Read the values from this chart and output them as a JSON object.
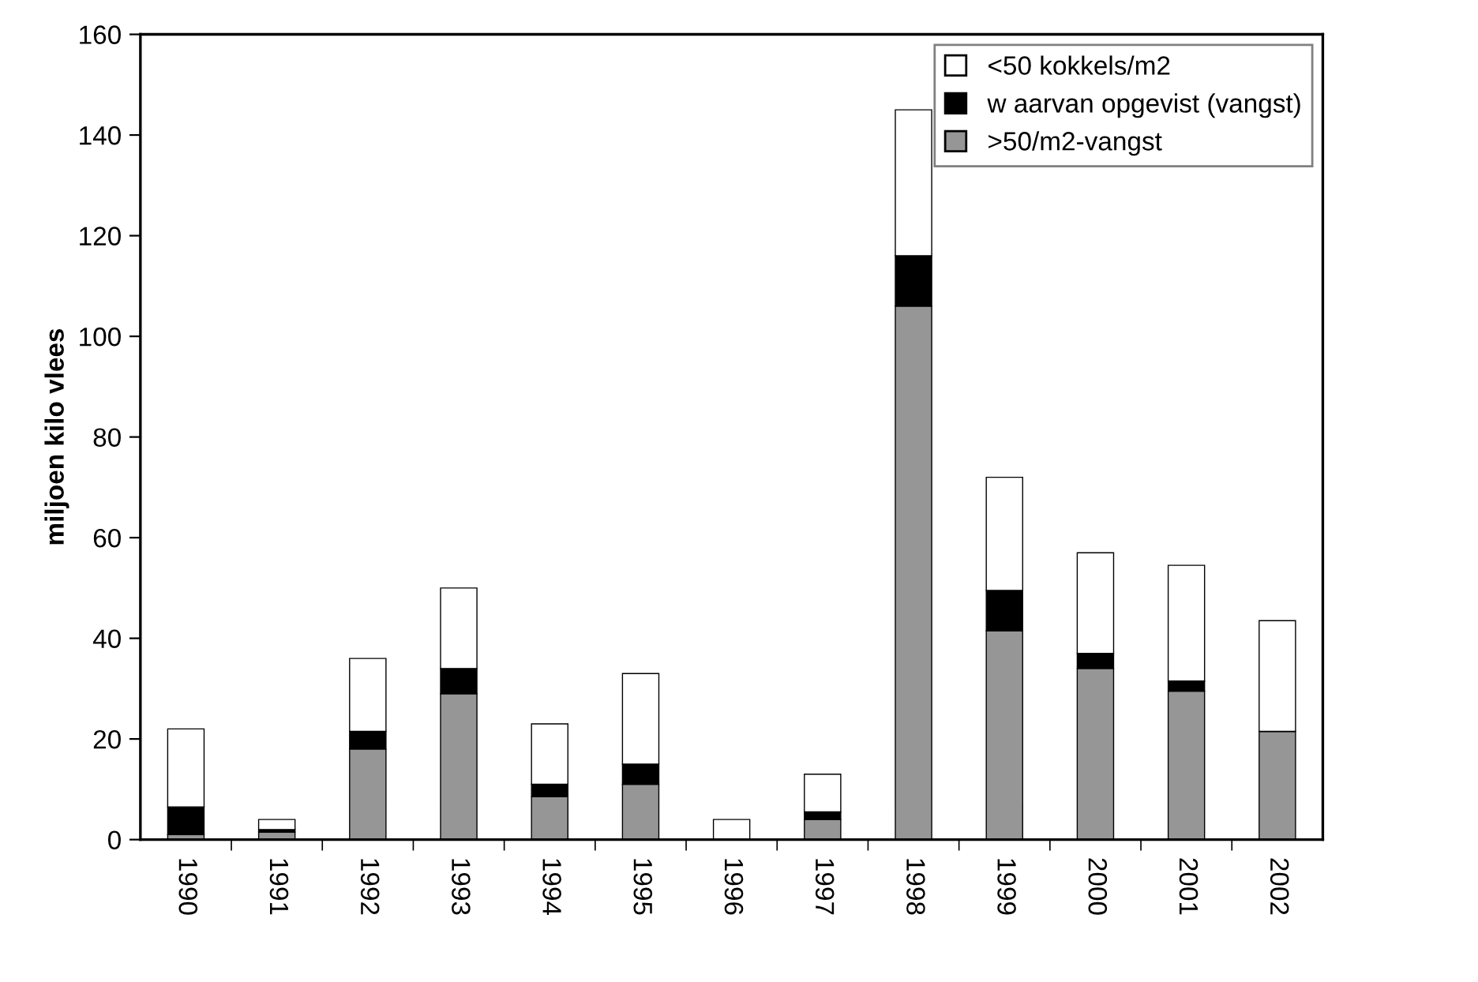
{
  "chart_data": {
    "type": "bar",
    "stacked": true,
    "ylabel": "miljoen kilo vlees",
    "categories": [
      "1990",
      "1991",
      "1992",
      "1993",
      "1994",
      "1995",
      "1996",
      "1997",
      "1998",
      "1999",
      "2000",
      "2001",
      "2002"
    ],
    "series": [
      {
        "name": ">50/m2-vangst",
        "color": "#969696",
        "values": [
          1,
          1.5,
          18,
          29,
          8.5,
          11,
          0,
          4,
          106,
          41.5,
          34,
          29.5,
          21.5
        ]
      },
      {
        "name": "w aarvan opgevist (vangst)",
        "color": "#000000",
        "values": [
          5.5,
          0.5,
          3.5,
          5,
          2.5,
          4,
          0,
          1.5,
          10,
          8,
          3,
          2,
          0
        ]
      },
      {
        "name": "<50 kokkels/m2",
        "color": "#ffffff",
        "values": [
          15.5,
          2,
          14.5,
          16,
          12,
          18,
          4,
          7.5,
          29,
          22.5,
          20,
          23,
          22
        ]
      }
    ],
    "ylim": [
      0,
      160
    ],
    "yticks": [
      0,
      20,
      40,
      60,
      80,
      100,
      120,
      140,
      160
    ],
    "grid": false,
    "legend": "top right"
  }
}
